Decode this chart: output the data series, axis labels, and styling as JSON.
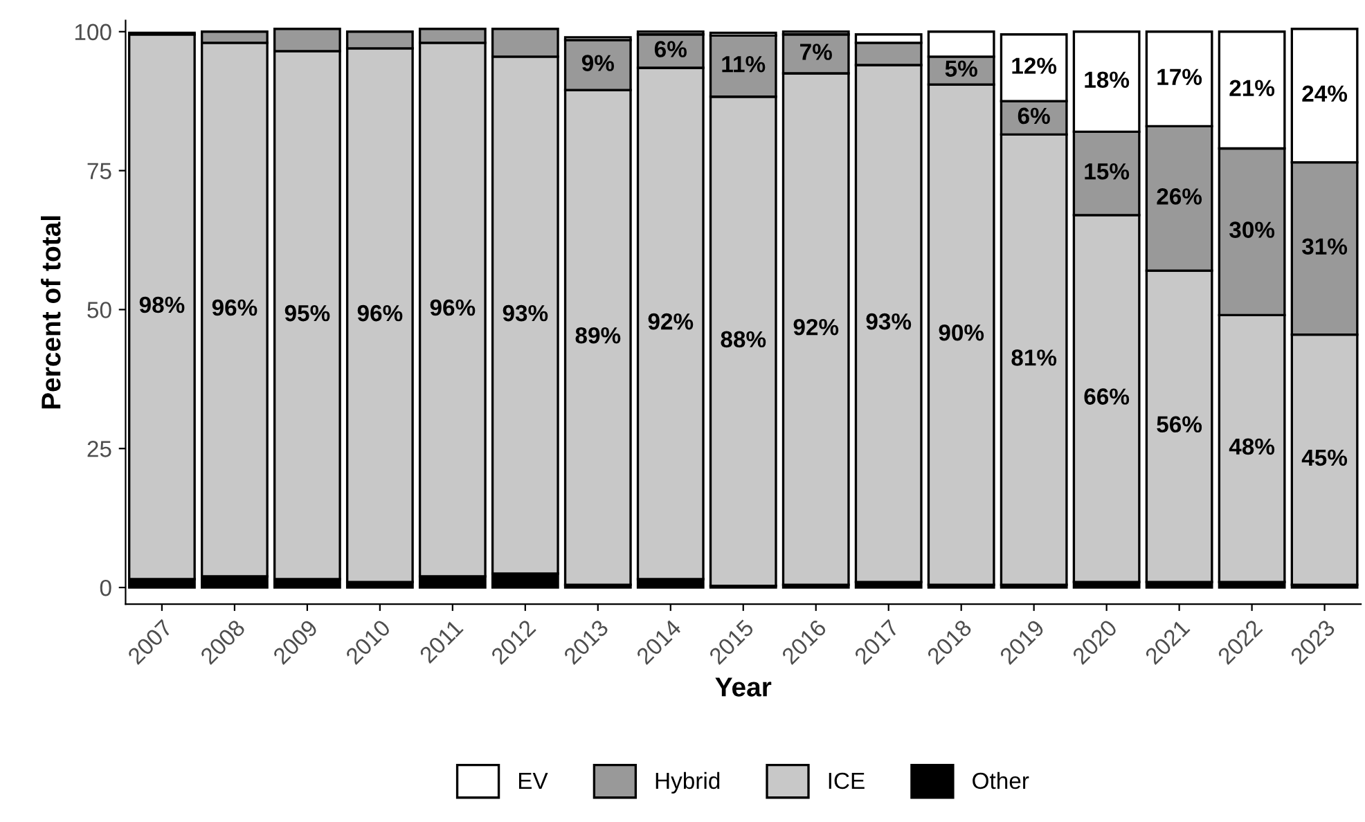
{
  "chart_data": {
    "type": "bar",
    "stacked": true,
    "xlabel": "Year",
    "ylabel": "Percent of total",
    "categories": [
      "2007",
      "2008",
      "2009",
      "2010",
      "2011",
      "2012",
      "2013",
      "2014",
      "2015",
      "2016",
      "2017",
      "2018",
      "2019",
      "2020",
      "2021",
      "2022",
      "2023"
    ],
    "series": [
      {
        "name": "Other",
        "color": "#000000",
        "values": [
          1.5,
          2,
          1.5,
          1,
          2,
          2.5,
          0.5,
          1.5,
          0.3,
          0.5,
          1,
          0.5,
          0.5,
          1,
          1,
          1,
          0.5
        ]
      },
      {
        "name": "ICE",
        "color": "#c8c8c8",
        "values": [
          98,
          96,
          95,
          96,
          96,
          93,
          89,
          92,
          88,
          92,
          93,
          90,
          81,
          66,
          56,
          48,
          45
        ],
        "value_labels": [
          "98%",
          "96%",
          "95%",
          "96%",
          "96%",
          "93%",
          "89%",
          "92%",
          "88%",
          "92%",
          "93%",
          "90%",
          "81%",
          "66%",
          "56%",
          "48%",
          "45%"
        ]
      },
      {
        "name": "Hybrid",
        "color": "#999999",
        "values": [
          0.3,
          2,
          4,
          3,
          2.5,
          5,
          9,
          6,
          11,
          7,
          4,
          5,
          6,
          15,
          26,
          30,
          31
        ],
        "value_labels": [
          null,
          null,
          null,
          null,
          null,
          null,
          "9%",
          "6%",
          "11%",
          "7%",
          null,
          "5%",
          "6%",
          "15%",
          "26%",
          "30%",
          "31%"
        ]
      },
      {
        "name": "EV",
        "color": "#ffffff",
        "values": [
          null,
          null,
          null,
          null,
          null,
          null,
          0.5,
          0.5,
          0.5,
          0.5,
          1.5,
          4.5,
          12,
          18,
          17,
          21,
          24
        ],
        "value_labels": [
          null,
          null,
          null,
          null,
          null,
          null,
          null,
          null,
          null,
          null,
          null,
          null,
          "12%",
          "18%",
          "17%",
          "21%",
          "24%"
        ]
      }
    ],
    "ylim": [
      -3,
      102
    ],
    "yticks": [
      0,
      25,
      50,
      75,
      100
    ],
    "grid": false,
    "legend": "bottom"
  }
}
